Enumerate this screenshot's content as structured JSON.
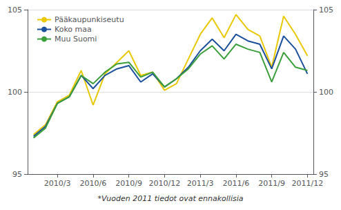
{
  "chart_data": {
    "type": "line",
    "categories": [
      null,
      null,
      "2010/3",
      null,
      null,
      "2010/6",
      null,
      null,
      "2010/9",
      null,
      null,
      "2010/12",
      null,
      null,
      "2011/3",
      null,
      null,
      "2011/6",
      null,
      null,
      "2011/9",
      null,
      null,
      "2011/12"
    ],
    "series": [
      {
        "name": "Pääkaupunkiseutu",
        "color": "#e8c800",
        "values": [
          97.4,
          98.0,
          99.4,
          99.8,
          101.3,
          99.2,
          101.1,
          101.8,
          102.5,
          101.0,
          101.2,
          100.1,
          100.5,
          102.0,
          103.5,
          104.5,
          103.3,
          104.7,
          103.8,
          103.4,
          101.5,
          104.6,
          103.5,
          102.2
        ]
      },
      {
        "name": "Koko maa",
        "color": "#1a4f9c",
        "values": [
          97.3,
          97.9,
          99.3,
          99.7,
          101.0,
          100.2,
          101.0,
          101.4,
          101.6,
          100.6,
          101.1,
          100.3,
          100.8,
          101.5,
          102.5,
          103.2,
          102.5,
          103.5,
          103.1,
          102.9,
          101.4,
          103.4,
          102.6,
          101.1
        ]
      },
      {
        "name": "Muu Suomi",
        "color": "#3a9e3a",
        "values": [
          97.2,
          97.8,
          99.3,
          99.7,
          101.0,
          100.5,
          101.2,
          101.7,
          101.8,
          100.9,
          101.2,
          100.3,
          100.8,
          101.4,
          102.3,
          102.8,
          102.0,
          102.9,
          102.6,
          102.4,
          100.6,
          102.4,
          101.5,
          101.3
        ]
      }
    ],
    "ylim": [
      95,
      105
    ],
    "yticks": [
      95,
      100,
      105
    ],
    "y2lim": [
      95,
      105
    ],
    "y2ticks": [
      95,
      100,
      105
    ],
    "xlabel": "*Vuoden 2011 tiedot ovat ennakollisia",
    "grid": true,
    "legend": "upper left"
  }
}
